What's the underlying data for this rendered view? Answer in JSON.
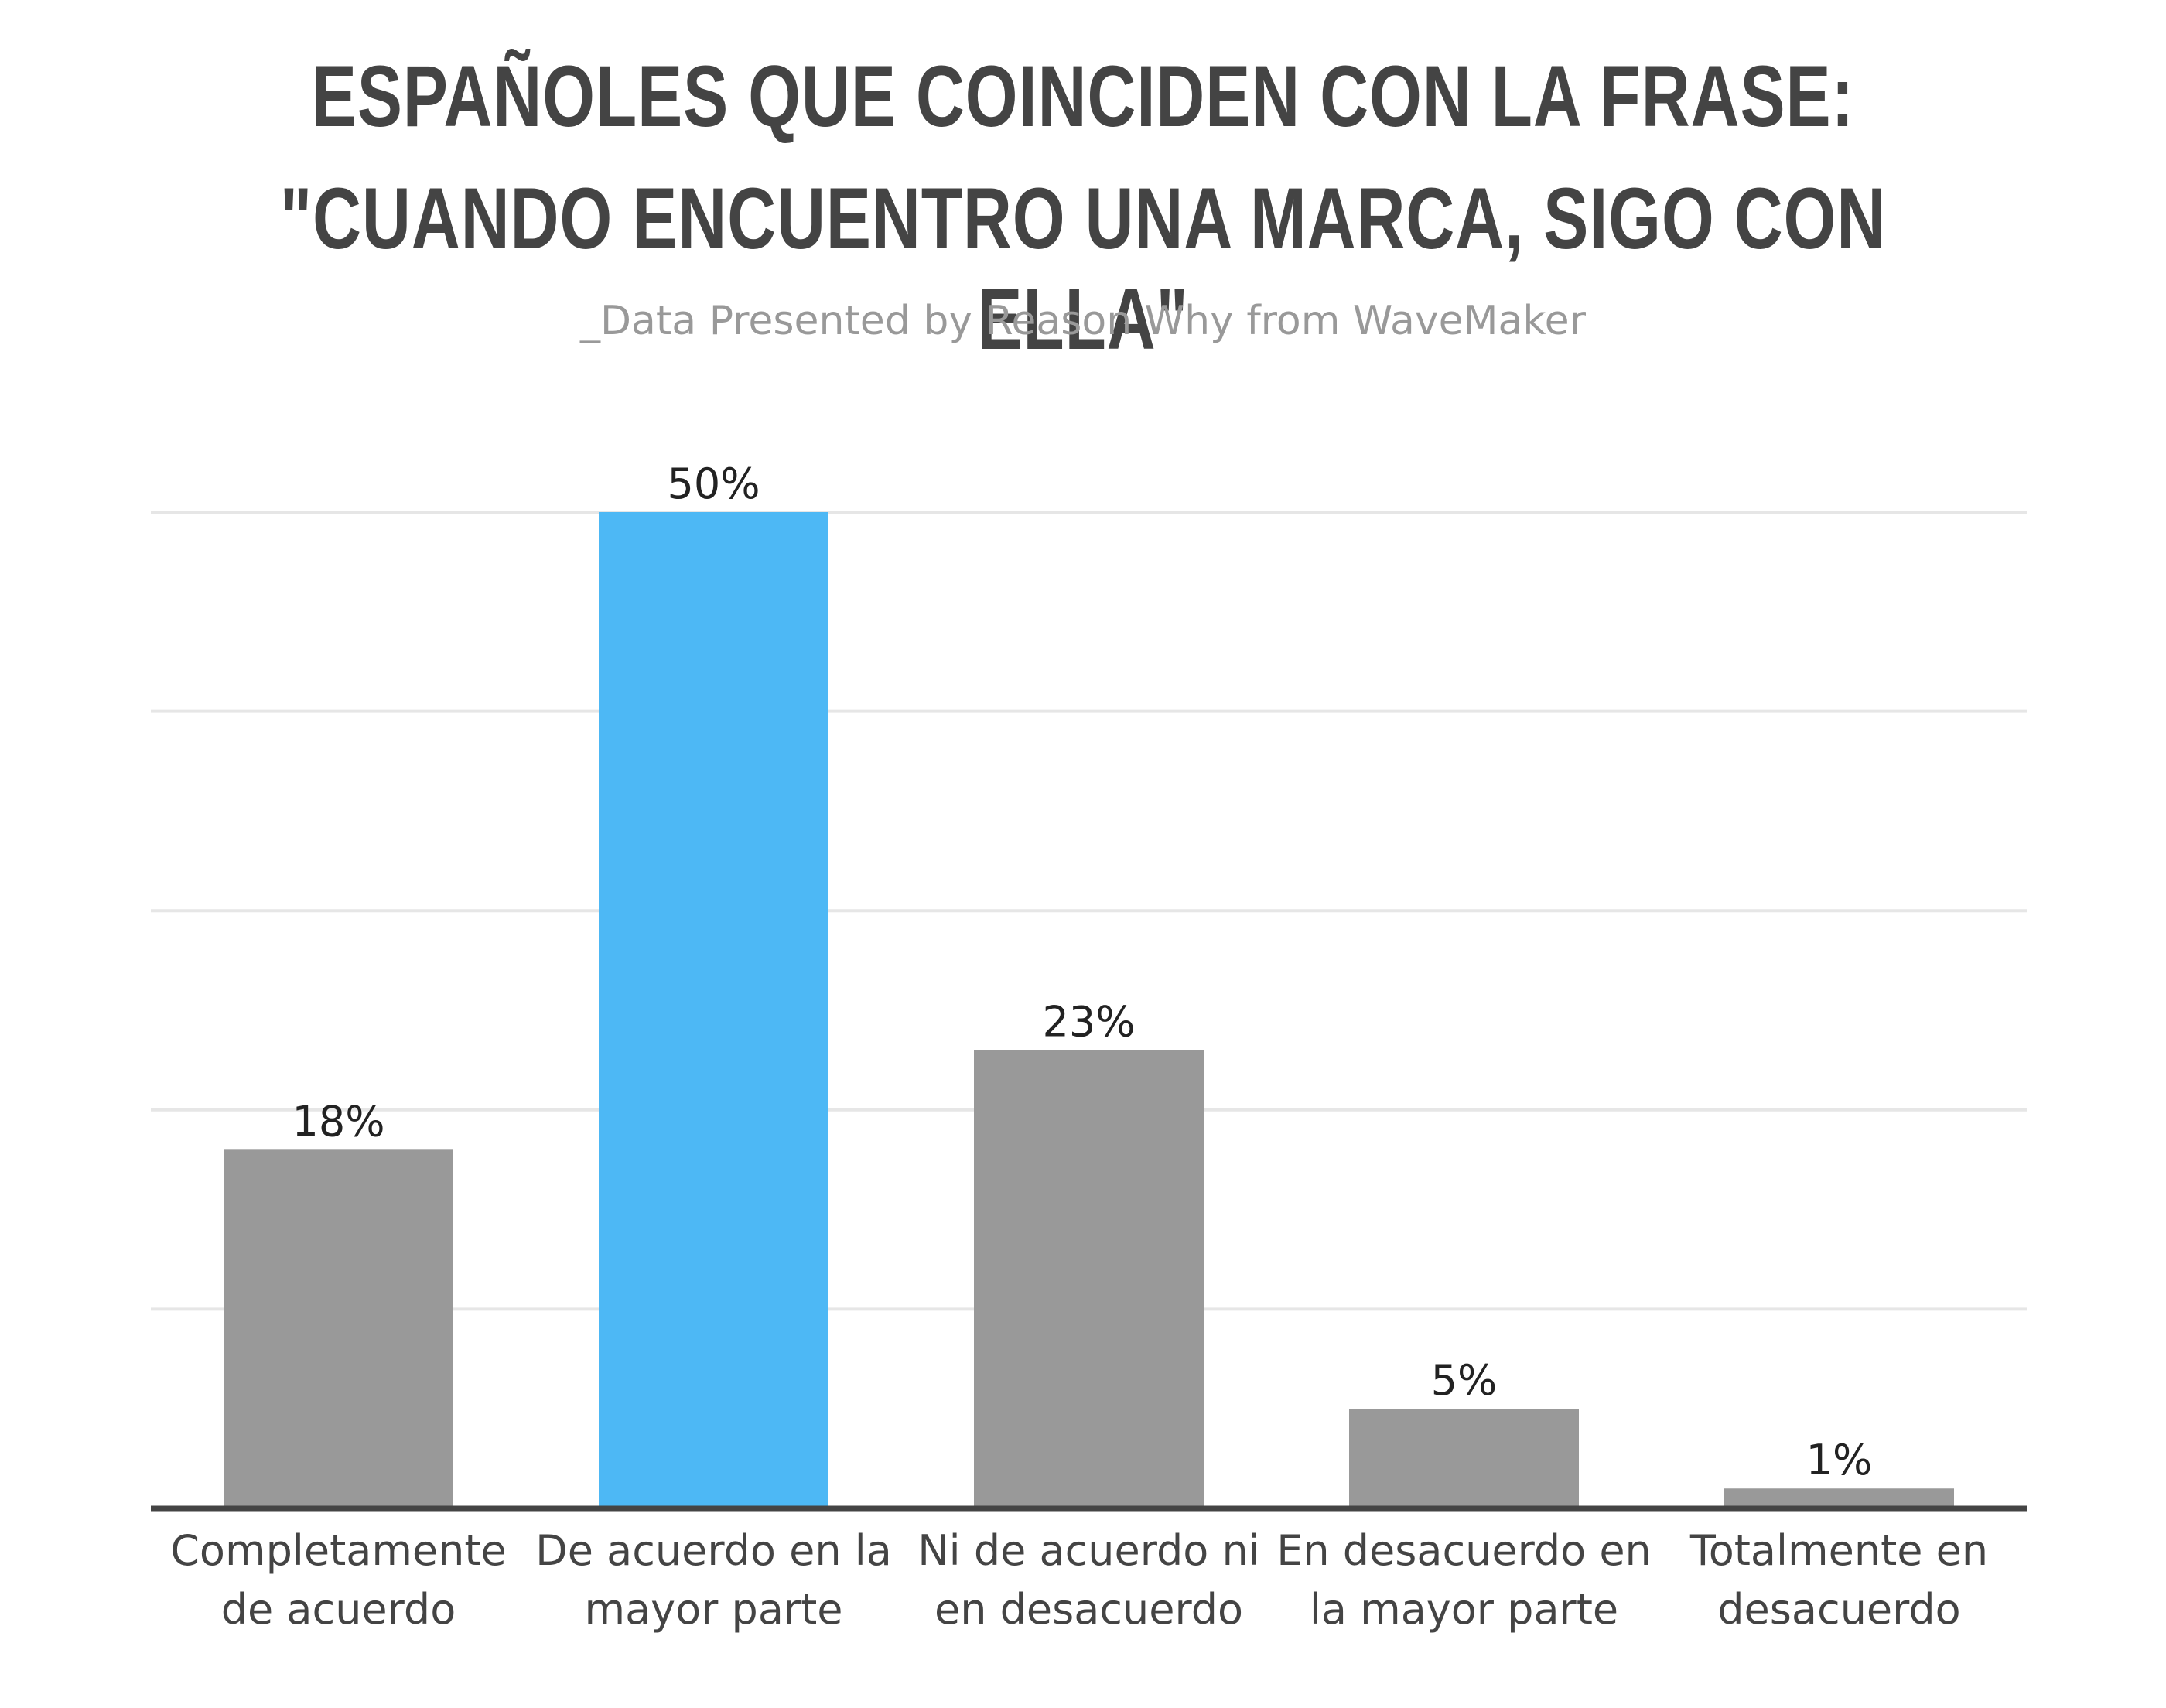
{
  "chart_data": {
    "type": "bar",
    "title": [
      "ESPAÑOLES QUE COINCIDEN CON LA FRASE:",
      "\"CUANDO ENCUENTRO UNA MARCA, SIGO CON ELLA\""
    ],
    "subtitle": "_Data Presented by Reason Why from WaveMaker",
    "categories": [
      [
        "Completamente",
        "de acuerdo"
      ],
      [
        "De acuerdo en la",
        "mayor parte"
      ],
      [
        "Ni de acuerdo ni",
        "en desacuerdo"
      ],
      [
        "En desacuerdo en",
        "la mayor parte"
      ],
      [
        "Totalmente en",
        "desacuerdo"
      ]
    ],
    "values": [
      18,
      50,
      23,
      5,
      1
    ],
    "value_labels": [
      "18%",
      "50%",
      "23%",
      "5%",
      "1%"
    ],
    "ylim": [
      0,
      50
    ],
    "grid": true,
    "colors": {
      "default_bar": "#999999",
      "highlight_bar": "#4db8f5",
      "highlight_index": 1,
      "grid": "#e6e6e6",
      "baseline": "#444444",
      "title": "#444444",
      "subtitle": "#999999",
      "value_label": "#222222",
      "category_label": "#444444"
    }
  }
}
